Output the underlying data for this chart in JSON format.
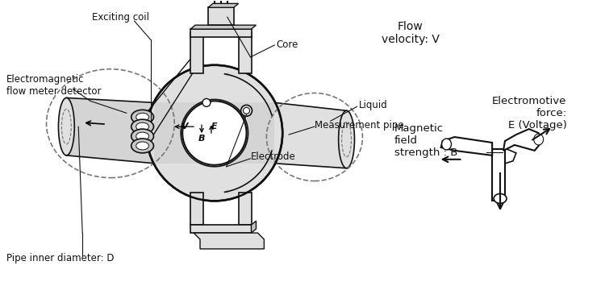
{
  "bg_color": "#ffffff",
  "line_color": "#111111",
  "gray1": "#c8c8c8",
  "gray2": "#e0e0e0",
  "gray3": "#d4d4d4",
  "dashed_color": "#777777",
  "labels": {
    "exciting_coil": "Exciting coil",
    "core": "Core",
    "em_detector": "Electromagnetic\nflow meter detector",
    "liquid": "Liquid",
    "meas_pipe": "Measurement pipe",
    "electrode": "Electrode",
    "pipe_diam": "Pipe inner diameter: D",
    "flow_vel": "Flow\nvelocity: V",
    "mag_field": "Magnetic\nfield\nstrength : B",
    "emf": "Electromotive\nforce:\nE (Voltage)"
  },
  "figsize": [
    7.5,
    3.5
  ],
  "dpi": 100
}
